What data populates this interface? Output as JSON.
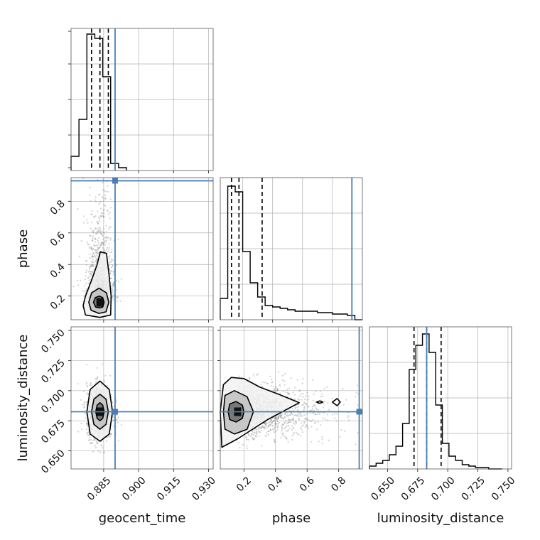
{
  "chart_data": [
    {
      "type": "histogram",
      "panel": "geocent_time",
      "xlim": [
        0.871,
        0.932
      ],
      "bin_edges": [
        0.871,
        0.8744,
        0.8778,
        0.8812,
        0.8846,
        0.888,
        0.8914,
        0.8948
      ],
      "counts": [
        0.1,
        0.36,
        0.96,
        0.93,
        0.66,
        0.05,
        0.02
      ],
      "quantiles": [
        0.8798,
        0.8834,
        0.887
      ],
      "truth": 0.8899,
      "xticks": [
        "0.885",
        "0.900",
        "0.915",
        "0.930"
      ],
      "xtick_values": [
        0.885,
        0.9,
        0.915,
        0.93
      ],
      "xlabel": "geocent_time",
      "grid": true
    },
    {
      "type": "histogram",
      "panel": "phase",
      "xlim": [
        0.05,
        1.0
      ],
      "bin_edges": [
        0.05,
        0.1,
        0.15,
        0.2,
        0.25,
        0.3,
        0.35,
        0.4,
        0.45,
        0.5,
        0.55,
        0.6,
        0.65,
        0.7,
        0.75,
        0.8,
        0.85,
        0.9,
        0.95,
        1.0
      ],
      "counts": [
        0.15,
        0.94,
        0.9,
        0.48,
        0.26,
        0.16,
        0.1,
        0.09,
        0.08,
        0.07,
        0.06,
        0.06,
        0.06,
        0.05,
        0.05,
        0.04,
        0.04,
        0.03,
        0.0
      ],
      "quantiles": [
        0.125,
        0.175,
        0.33
      ],
      "truth": 0.93,
      "xticks": [
        "0.2",
        "0.4",
        "0.6",
        "0.8"
      ],
      "xtick_values": [
        0.2,
        0.4,
        0.6,
        0.8
      ],
      "xlabel": "phase",
      "grid": true
    },
    {
      "type": "histogram",
      "panel": "luminosity_distance",
      "xlim": [
        0.635,
        0.753
      ],
      "bin_edges": [
        0.635,
        0.6405,
        0.646,
        0.6515,
        0.657,
        0.6625,
        0.668,
        0.6735,
        0.679,
        0.6845,
        0.69,
        0.6955,
        0.701,
        0.7065,
        0.712,
        0.7175,
        0.723,
        0.7285,
        0.734,
        0.745
      ],
      "counts": [
        0.02,
        0.04,
        0.06,
        0.1,
        0.16,
        0.32,
        0.7,
        0.87,
        0.95,
        0.82,
        0.45,
        0.18,
        0.09,
        0.06,
        0.03,
        0.02,
        0.01,
        0.01,
        0.0
      ],
      "quantiles": [
        0.672,
        0.6825,
        0.6945
      ],
      "truth": 0.6825,
      "xticks": [
        "0.650",
        "0.675",
        "0.700",
        "0.725",
        "0.750"
      ],
      "xtick_values": [
        0.65,
        0.675,
        0.7,
        0.725,
        0.75
      ],
      "xlabel": "luminosity_distance",
      "grid": true
    },
    {
      "type": "scatter",
      "panel": "geocent_time vs phase",
      "x": "geocent_time",
      "y": "phase",
      "xlim": [
        0.871,
        0.932
      ],
      "ylim": [
        0.05,
        0.95
      ],
      "center": [
        0.8834,
        0.16
      ],
      "spread": [
        0.0028,
        0.12
      ],
      "truth": [
        0.8899,
        0.93
      ],
      "yticks": [
        "0.2",
        "0.4",
        "0.6",
        "0.8"
      ],
      "ytick_values": [
        0.2,
        0.4,
        0.6,
        0.8
      ],
      "ylabel": "phase",
      "contours": [
        [
          [
            0.8806,
            0.16
          ],
          [
            0.8816,
            0.13
          ],
          [
            0.8832,
            0.125
          ],
          [
            0.8846,
            0.13
          ],
          [
            0.8852,
            0.16
          ],
          [
            0.8846,
            0.19
          ],
          [
            0.8832,
            0.2
          ],
          [
            0.8814,
            0.19
          ]
        ],
        [
          [
            0.8786,
            0.16
          ],
          [
            0.8796,
            0.11
          ],
          [
            0.883,
            0.09
          ],
          [
            0.886,
            0.1
          ],
          [
            0.8872,
            0.16
          ],
          [
            0.8862,
            0.22
          ],
          [
            0.883,
            0.25
          ],
          [
            0.8798,
            0.22
          ]
        ],
        [
          [
            0.8762,
            0.14
          ],
          [
            0.8772,
            0.08
          ],
          [
            0.8834,
            0.065
          ],
          [
            0.888,
            0.08
          ],
          [
            0.8882,
            0.2
          ],
          [
            0.8872,
            0.35
          ],
          [
            0.8862,
            0.47
          ],
          [
            0.8836,
            0.48
          ],
          [
            0.8822,
            0.4
          ],
          [
            0.8798,
            0.3
          ],
          [
            0.8772,
            0.2
          ]
        ]
      ]
    },
    {
      "type": "scatter",
      "panel": "geocent_time vs luminosity_distance",
      "x": "geocent_time",
      "y": "luminosity_distance",
      "xlim": [
        0.871,
        0.932
      ],
      "ylim": [
        0.635,
        0.753
      ],
      "center": [
        0.8834,
        0.6825
      ],
      "spread": [
        0.0028,
        0.011
      ],
      "truth": [
        0.8899,
        0.6825
      ],
      "yticks": [
        "0.650",
        "0.675",
        "0.700",
        "0.725",
        "0.750"
      ],
      "ytick_values": [
        0.65,
        0.675,
        0.7,
        0.725,
        0.75
      ],
      "ylabel": "luminosity_distance",
      "contours": [
        [
          [
            0.8816,
            0.6825
          ],
          [
            0.8822,
            0.677
          ],
          [
            0.8834,
            0.675
          ],
          [
            0.8846,
            0.677
          ],
          [
            0.8852,
            0.6825
          ],
          [
            0.8846,
            0.688
          ],
          [
            0.8834,
            0.69
          ],
          [
            0.8822,
            0.688
          ]
        ],
        [
          [
            0.8798,
            0.6825
          ],
          [
            0.8808,
            0.672
          ],
          [
            0.8834,
            0.668
          ],
          [
            0.886,
            0.672
          ],
          [
            0.887,
            0.6825
          ],
          [
            0.886,
            0.693
          ],
          [
            0.8834,
            0.697
          ],
          [
            0.8808,
            0.693
          ]
        ],
        [
          [
            0.8778,
            0.6825
          ],
          [
            0.8792,
            0.664
          ],
          [
            0.8834,
            0.658
          ],
          [
            0.8874,
            0.664
          ],
          [
            0.8888,
            0.6825
          ],
          [
            0.8874,
            0.701
          ],
          [
            0.8834,
            0.708
          ],
          [
            0.8792,
            0.701
          ]
        ]
      ]
    },
    {
      "type": "scatter",
      "panel": "phase vs luminosity_distance",
      "x": "phase",
      "y": "luminosity_distance",
      "xlim": [
        0.05,
        0.95
      ],
      "ylim": [
        0.635,
        0.753
      ],
      "center": [
        0.16,
        0.6825
      ],
      "spread": [
        0.18,
        0.011
      ],
      "truth": [
        0.93,
        0.6825
      ],
      "contours": [
        [
          [
            0.1,
            0.6825
          ],
          [
            0.11,
            0.676
          ],
          [
            0.15,
            0.674
          ],
          [
            0.19,
            0.677
          ],
          [
            0.2,
            0.6825
          ],
          [
            0.19,
            0.688
          ],
          [
            0.15,
            0.691
          ],
          [
            0.11,
            0.689
          ]
        ],
        [
          [
            0.07,
            0.6825
          ],
          [
            0.08,
            0.668
          ],
          [
            0.14,
            0.664
          ],
          [
            0.22,
            0.668
          ],
          [
            0.26,
            0.6825
          ],
          [
            0.22,
            0.695
          ],
          [
            0.14,
            0.7
          ],
          [
            0.08,
            0.696
          ]
        ],
        [
          [
            0.05,
            0.6825
          ],
          [
            0.06,
            0.653
          ],
          [
            0.16,
            0.66
          ],
          [
            0.35,
            0.676
          ],
          [
            0.55,
            0.69
          ],
          [
            0.42,
            0.697
          ],
          [
            0.3,
            0.703
          ],
          [
            0.2,
            0.71
          ],
          [
            0.12,
            0.711
          ],
          [
            0.07,
            0.705
          ]
        ],
        [
          [
            0.66,
            0.6905
          ],
          [
            0.68,
            0.6895
          ],
          [
            0.7,
            0.6905
          ],
          [
            0.68,
            0.6915
          ]
        ],
        [
          [
            0.76,
            0.6905
          ],
          [
            0.79,
            0.6875
          ],
          [
            0.81,
            0.6905
          ],
          [
            0.79,
            0.6935
          ]
        ]
      ]
    }
  ],
  "colors": {
    "truth": "#4a7fb5",
    "hist": "#000000",
    "points": "#808080",
    "grid": "#b0b0b0",
    "frame": "#555555"
  }
}
